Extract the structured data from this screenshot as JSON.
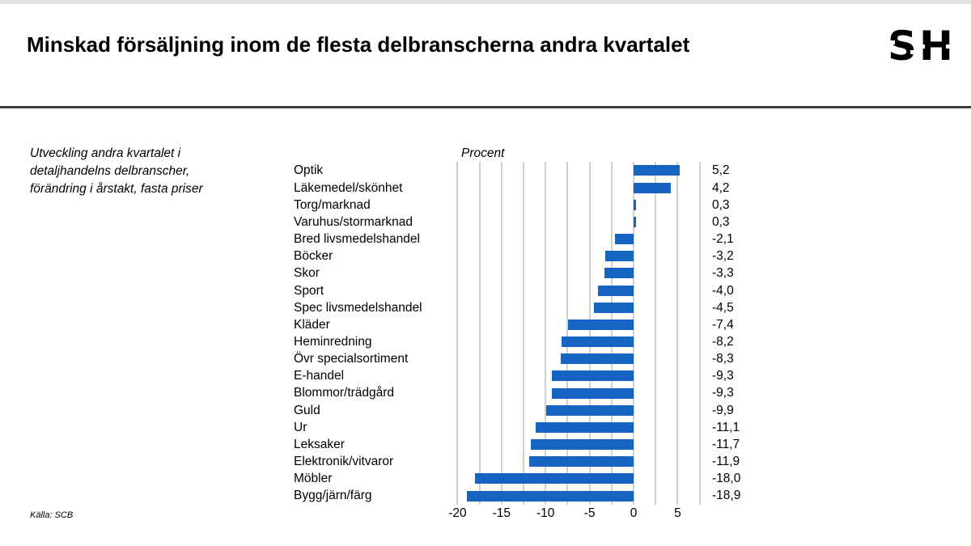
{
  "page": {
    "title": "Minskad försäljning inom de flesta delbranscherna andra kvartalet",
    "logo": "SH",
    "note_lines": [
      "Utveckling andra kvartalet i",
      "detaljhandelns delbranscher,",
      "förändring i årstakt, fasta priser"
    ],
    "source": "Källa: SCB"
  },
  "chart_data": {
    "type": "bar",
    "orientation": "horizontal",
    "title": "Procent",
    "categories": [
      "Optik",
      "Läkemedel/skönhet",
      "Torg/marknad",
      "Varuhus/stormarknad",
      "Bred livsmedelshandel",
      "Böcker",
      "Skor",
      "Sport",
      "Spec livsmedelshandel",
      "Kläder",
      "Heminredning",
      "Övr specialsortiment",
      "E-handel",
      "Blommor/trädgård",
      "Guld",
      "Ur",
      "Leksaker",
      "Elektronik/vitvaror",
      "Möbler",
      "Bygg/järn/färg"
    ],
    "values": [
      5.2,
      4.2,
      0.3,
      0.3,
      -2.1,
      -3.2,
      -3.3,
      -4.0,
      -4.5,
      -7.4,
      -8.2,
      -8.3,
      -9.3,
      -9.3,
      -9.9,
      -11.1,
      -11.7,
      -11.9,
      -18.0,
      -18.9
    ],
    "value_labels": [
      "5,2",
      "4,2",
      "0,3",
      "0,3",
      "-2,1",
      "-3,2",
      "-3,3",
      "-4,0",
      "-4,5",
      "-7,4",
      "-8,2",
      "-8,3",
      "-9,3",
      "-9,3",
      "-9,9",
      "-11,1",
      "-11,7",
      "-11,9",
      "-18,0",
      "-18,9"
    ],
    "xlim": [
      -20,
      7.5
    ],
    "x_ticks": [
      -20,
      -15,
      -10,
      -5,
      0,
      5
    ],
    "x_tick_labels": [
      "-20",
      "-15",
      "-10",
      "-5",
      "0",
      "5"
    ],
    "gridline_step": 2.5,
    "grid": true,
    "legend": false,
    "bar_color": "#1564c2",
    "gridline_color": "#ccd5cc"
  }
}
